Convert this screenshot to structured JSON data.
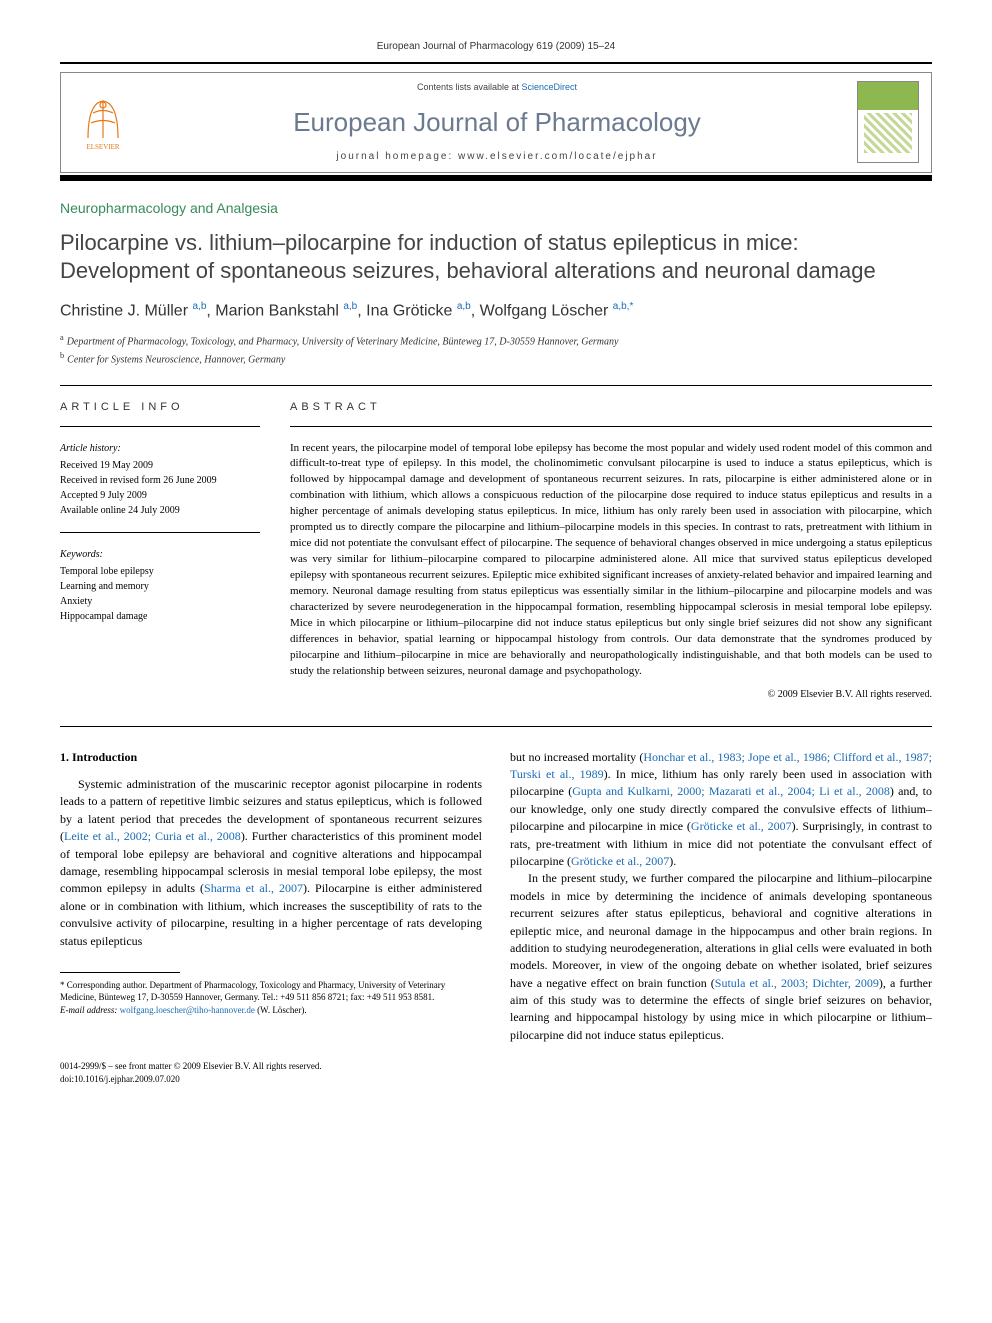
{
  "header": {
    "journal_ref": "European Journal of Pharmacology 619 (2009) 15–24",
    "contents_prefix": "Contents lists available at ",
    "contents_link": "ScienceDirect",
    "journal_name": "European Journal of Pharmacology",
    "homepage_prefix": "journal homepage: ",
    "homepage": "www.elsevier.com/locate/ejphar",
    "elsevier_label": "ELSEVIER"
  },
  "article": {
    "section": "Neuropharmacology and Analgesia",
    "title": "Pilocarpine vs. lithium–pilocarpine for induction of status epilepticus in mice: Development of spontaneous seizures, behavioral alterations and neuronal damage",
    "authors_html": "Christine J. Müller <sup>a,b</sup>, Marion Bankstahl <sup>a,b</sup>, Ina Gröticke <sup>a,b</sup>, Wolfgang Löscher <sup>a,b,*</sup>",
    "affiliations": {
      "a": "Department of Pharmacology, Toxicology, and Pharmacy, University of Veterinary Medicine, Bünteweg 17, D-30559 Hannover, Germany",
      "b": "Center for Systems Neuroscience, Hannover, Germany"
    }
  },
  "info": {
    "heading": "ARTICLE INFO",
    "history_label": "Article history:",
    "history": [
      "Received 19 May 2009",
      "Received in revised form 26 June 2009",
      "Accepted 9 July 2009",
      "Available online 24 July 2009"
    ],
    "keywords_label": "Keywords:",
    "keywords": [
      "Temporal lobe epilepsy",
      "Learning and memory",
      "Anxiety",
      "Hippocampal damage"
    ]
  },
  "abstract": {
    "heading": "ABSTRACT",
    "text": "In recent years, the pilocarpine model of temporal lobe epilepsy has become the most popular and widely used rodent model of this common and difficult-to-treat type of epilepsy. In this model, the cholinomimetic convulsant pilocarpine is used to induce a status epilepticus, which is followed by hippocampal damage and development of spontaneous recurrent seizures. In rats, pilocarpine is either administered alone or in combination with lithium, which allows a conspicuous reduction of the pilocarpine dose required to induce status epilepticus and results in a higher percentage of animals developing status epilepticus. In mice, lithium has only rarely been used in association with pilocarpine, which prompted us to directly compare the pilocarpine and lithium–pilocarpine models in this species. In contrast to rats, pretreatment with lithium in mice did not potentiate the convulsant effect of pilocarpine. The sequence of behavioral changes observed in mice undergoing a status epilepticus was very similar for lithium–pilocarpine compared to pilocarpine administered alone. All mice that survived status epilepticus developed epilepsy with spontaneous recurrent seizures. Epileptic mice exhibited significant increases of anxiety-related behavior and impaired learning and memory. Neuronal damage resulting from status epilepticus was essentially similar in the lithium–pilocarpine and pilocarpine models and was characterized by severe neurodegeneration in the hippocampal formation, resembling hippocampal sclerosis in mesial temporal lobe epilepsy. Mice in which pilocarpine or lithium–pilocarpine did not induce status epilepticus but only single brief seizures did not show any significant differences in behavior, spatial learning or hippocampal histology from controls. Our data demonstrate that the syndromes produced by pilocarpine and lithium–pilocarpine in mice are behaviorally and neuropathologically indistinguishable, and that both models can be used to study the relationship between seizures, neuronal damage and psychopathology.",
    "copyright": "© 2009 Elsevier B.V. All rights reserved."
  },
  "body": {
    "heading": "1. Introduction",
    "col1_p1_pre": "Systemic administration of the muscarinic receptor agonist pilocarpine in rodents leads to a pattern of repetitive limbic seizures and status epilepticus, which is followed by a latent period that precedes the development of spontaneous recurrent seizures (",
    "col1_cite1": "Leite et al., 2002; Curia et al., 2008",
    "col1_p1_mid": "). Further characteristics of this prominent model of temporal lobe epilepsy are behavioral and cognitive alterations and hippocampal damage, resembling hippocampal sclerosis in mesial temporal lobe epilepsy, the most common epilepsy in adults (",
    "col1_cite2": "Sharma et al., 2007",
    "col1_p1_post": "). Pilocarpine is either administered alone or in combination with lithium, which increases the susceptibility of rats to the convulsive activity of pilocarpine, resulting in a higher percentage of rats developing status epilepticus",
    "col2_p1_pre": "but no increased mortality (",
    "col2_cite1": "Honchar et al., 1983; Jope et al., 1986; Clifford et al., 1987; Turski et al., 1989",
    "col2_p1_mid1": "). In mice, lithium has only rarely been used in association with pilocarpine (",
    "col2_cite2": "Gupta and Kulkarni, 2000; Mazarati et al., 2004; Li et al., 2008",
    "col2_p1_mid2": ") and, to our knowledge, only one study directly compared the convulsive effects of lithium–pilocarpine and pilocarpine in mice (",
    "col2_cite3": "Gröticke et al., 2007",
    "col2_p1_mid3": "). Surprisingly, in contrast to rats, pre-treatment with lithium in mice did not potentiate the convulsant effect of pilocarpine (",
    "col2_cite4": "Gröticke et al., 2007",
    "col2_p1_post": ").",
    "col2_p2_pre": "In the present study, we further compared the pilocarpine and lithium–pilocarpine models in mice by determining the incidence of animals developing spontaneous recurrent seizures after status epilepticus, behavioral and cognitive alterations in epileptic mice, and neuronal damage in the hippocampus and other brain regions. In addition to studying neurodegeneration, alterations in glial cells were evaluated in both models. Moreover, in view of the ongoing debate on whether isolated, brief seizures have a negative effect on brain function (",
    "col2_cite5": "Sutula et al., 2003; Dichter, 2009",
    "col2_p2_post": "), a further aim of this study was to determine the effects of single brief seizures on behavior, learning and hippocampal histology by using mice in which pilocarpine or lithium–pilocarpine did not induce status epilepticus."
  },
  "footnote": {
    "corr": "* Corresponding author. Department of Pharmacology, Toxicology and Pharmacy, University of Veterinary Medicine, Bünteweg 17, D-30559 Hannover, Germany. Tel.: +49 511 856 8721; fax: +49 511 953 8581.",
    "email_label": "E-mail address: ",
    "email": "wolfgang.loescher@tiho-hannover.de",
    "email_name": " (W. Löscher)."
  },
  "bottom": {
    "line1": "0014-2999/$ – see front matter © 2009 Elsevier B.V. All rights reserved.",
    "line2": "doi:10.1016/j.ejphar.2009.07.020"
  },
  "colors": {
    "link": "#1a6bb5",
    "section": "#3a8a5a",
    "journal": "#6b7a8f",
    "elsevier": "#e67817"
  }
}
